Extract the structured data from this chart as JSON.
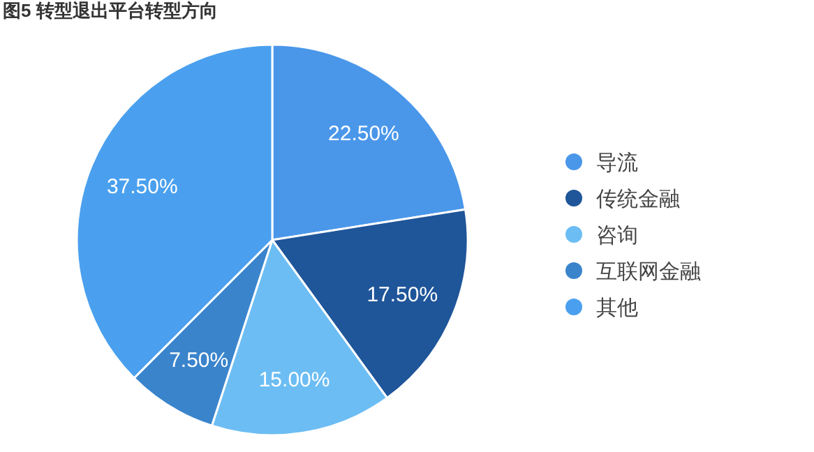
{
  "chart_data": {
    "type": "pie",
    "title": "图5 转型退出平台转型方向",
    "categories": [
      "导流",
      "传统金融",
      "咨询",
      "互联网金融",
      "其他"
    ],
    "values": [
      22.5,
      17.5,
      15,
      7.5,
      37.5
    ],
    "value_labels": [
      "22.50%",
      "17.50%",
      "15.00%",
      "7.50%",
      "37.50%"
    ],
    "colors": [
      "#4a97ea",
      "#1f5599",
      "#6cbdf3",
      "#3a84cc",
      "#4aa0ee"
    ],
    "legend": "right"
  }
}
